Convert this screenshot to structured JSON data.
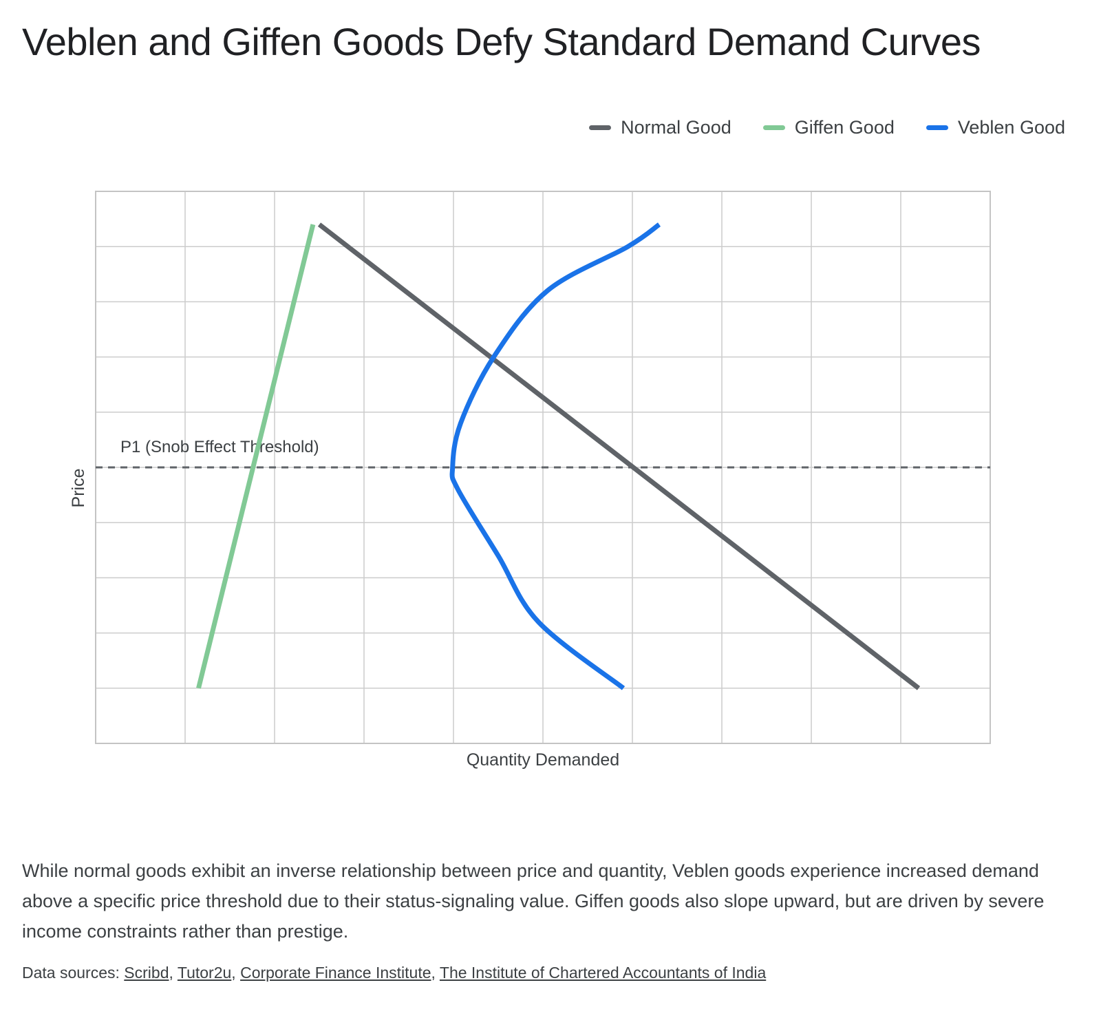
{
  "title": "Veblen and Giffen Goods Defy Standard Demand Curves",
  "caption": "While normal goods exhibit an inverse relationship between price and quantity, Veblen goods experience increased demand above a specific price threshold due to their status-signaling value. Giffen goods also slope upward, but are driven by severe income constraints rather than prestige.",
  "sources": {
    "prefix": "Data sources: ",
    "links": [
      "Scribd",
      "Tutor2u",
      "Corporate Finance Institute",
      "The Institute of Chartered Accountants of India"
    ]
  },
  "chart_data": {
    "type": "line",
    "title": "Veblen and Giffen Goods Defy Standard Demand Curves",
    "xlabel": "Quantity Demanded",
    "ylabel": "Price",
    "xlim": [
      0,
      10
    ],
    "ylim": [
      0,
      10
    ],
    "grid": true,
    "axis_tick_labels": false,
    "legend_position": "top-right",
    "series": [
      {
        "name": "Normal Good",
        "color": "#5f6368",
        "points": [
          [
            2.5,
            9.4
          ],
          [
            9.2,
            1.0
          ]
        ]
      },
      {
        "name": "Giffen Good",
        "color": "#81c995",
        "points": [
          [
            1.15,
            1.0
          ],
          [
            2.43,
            9.4
          ]
        ]
      },
      {
        "name": "Veblen Good",
        "color": "#1a73e8",
        "points": [
          [
            5.9,
            1.0
          ],
          [
            4.95,
            2.2
          ],
          [
            4.5,
            3.4
          ],
          [
            4.05,
            4.6
          ],
          [
            3.99,
            5.0
          ],
          [
            4.08,
            5.8
          ],
          [
            4.45,
            7.0
          ],
          [
            5.05,
            8.2
          ],
          [
            5.95,
            9.0
          ],
          [
            6.3,
            9.4
          ]
        ]
      }
    ],
    "annotations": [
      {
        "type": "hline",
        "y": 5.0,
        "style": "dashed",
        "color": "#5f6368",
        "label": "P1 (Snob Effect Threshold)"
      }
    ]
  }
}
